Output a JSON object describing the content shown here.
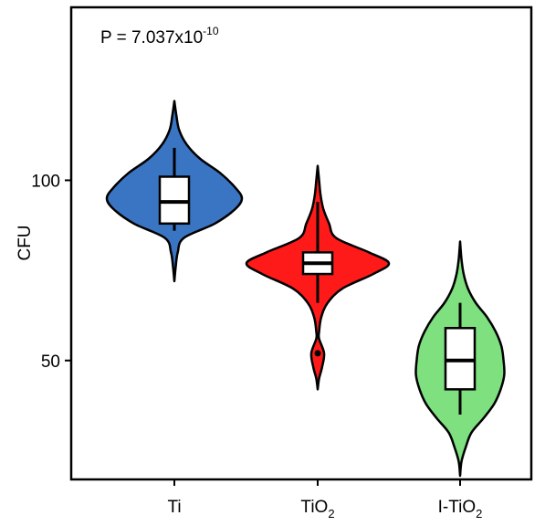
{
  "chart_data": {
    "type": "violin",
    "annotation": {
      "prefix": "P = 7.037x10",
      "exponent": "-10"
    },
    "ylabel": "CFU",
    "xlabel": "",
    "ylim": [
      17,
      148
    ],
    "yticks": [
      50,
      100
    ],
    "grid": false,
    "categories": [
      {
        "base": "Ti",
        "sub": ""
      },
      {
        "base": "TiO",
        "sub": "2"
      },
      {
        "base": "I-TiO",
        "sub": "2"
      }
    ],
    "colors": [
      "#3a75c4",
      "#ff1a1a",
      "#7ee07e"
    ],
    "series": [
      {
        "box": {
          "whisker_low": 86,
          "q1": 88,
          "median": 94,
          "q3": 101,
          "whisker_high": 109
        },
        "outliers": [],
        "density": [
          [
            72,
            0
          ],
          [
            76,
            0.02
          ],
          [
            80,
            0.05
          ],
          [
            84,
            0.14
          ],
          [
            88,
            0.6
          ],
          [
            92,
            0.9
          ],
          [
            95,
            1.0
          ],
          [
            98,
            0.9
          ],
          [
            102,
            0.68
          ],
          [
            106,
            0.38
          ],
          [
            110,
            0.18
          ],
          [
            114,
            0.07
          ],
          [
            118,
            0.03
          ],
          [
            122,
            0
          ]
        ]
      },
      {
        "box": {
          "whisker_low": 66,
          "q1": 74,
          "median": 77,
          "q3": 80,
          "whisker_high": 94
        },
        "outliers": [
          52
        ],
        "density": [
          [
            42,
            0
          ],
          [
            45,
            0.02
          ],
          [
            48,
            0.06
          ],
          [
            52,
            0.09
          ],
          [
            56,
            0.02
          ],
          [
            58,
            0.02
          ],
          [
            62,
            0.05
          ],
          [
            66,
            0.14
          ],
          [
            70,
            0.35
          ],
          [
            74,
            0.78
          ],
          [
            77,
            1.0
          ],
          [
            80,
            0.72
          ],
          [
            84,
            0.26
          ],
          [
            88,
            0.16
          ],
          [
            92,
            0.08
          ],
          [
            96,
            0.04
          ],
          [
            100,
            0.02
          ],
          [
            104,
            0
          ]
        ]
      },
      {
        "box": {
          "whisker_low": 35,
          "q1": 42,
          "median": 50,
          "q3": 59,
          "whisker_high": 66
        },
        "outliers": [],
        "density": [
          [
            18,
            0
          ],
          [
            22,
            0.02
          ],
          [
            26,
            0.08
          ],
          [
            30,
            0.16
          ],
          [
            34,
            0.33
          ],
          [
            38,
            0.48
          ],
          [
            42,
            0.57
          ],
          [
            46,
            0.62
          ],
          [
            50,
            0.61
          ],
          [
            54,
            0.58
          ],
          [
            58,
            0.5
          ],
          [
            62,
            0.38
          ],
          [
            66,
            0.22
          ],
          [
            70,
            0.11
          ],
          [
            74,
            0.05
          ],
          [
            78,
            0.02
          ],
          [
            83,
            0
          ]
        ]
      }
    ]
  }
}
